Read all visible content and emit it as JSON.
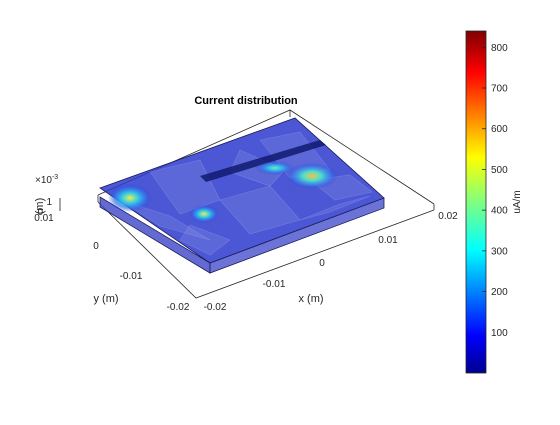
{
  "chart_data": {
    "type": "heatmap",
    "title": "Current distribution",
    "xlabel": "x (m)",
    "ylabel": "y (m)",
    "zlabel": "(m)",
    "z_exponent": "×10",
    "z_exponent_power": "-3",
    "x_ticks": [
      "-0.02",
      "-0.01",
      "0",
      "0.01",
      "0.02"
    ],
    "y_ticks": [
      "-0.02",
      "-0.01",
      "0",
      "0.01"
    ],
    "z_ticks": [
      "1",
      "0"
    ],
    "xlim": [
      -0.025,
      0.025
    ],
    "ylim": [
      -0.025,
      0.015
    ],
    "zlim": [
      0,
      1
    ],
    "colorbar": {
      "label": "uA/m",
      "ticks": [
        "800",
        "700",
        "600",
        "500",
        "400",
        "300",
        "200",
        "100"
      ],
      "range": [
        0,
        840
      ],
      "colormap": "jet"
    },
    "hotspots": [
      {
        "x": -0.02,
        "y": 0.012,
        "value": 450
      },
      {
        "x": 0.014,
        "y": -0.004,
        "value": 520
      },
      {
        "x": -0.011,
        "y": -0.004,
        "value": 380
      },
      {
        "x": 0.006,
        "y": 0.011,
        "value": 180
      }
    ]
  },
  "colors": {
    "plate_fill": "#2c3acd",
    "plate_edge": "#1c1c5a",
    "box_edge": "#262626",
    "background": "#ffffff"
  }
}
